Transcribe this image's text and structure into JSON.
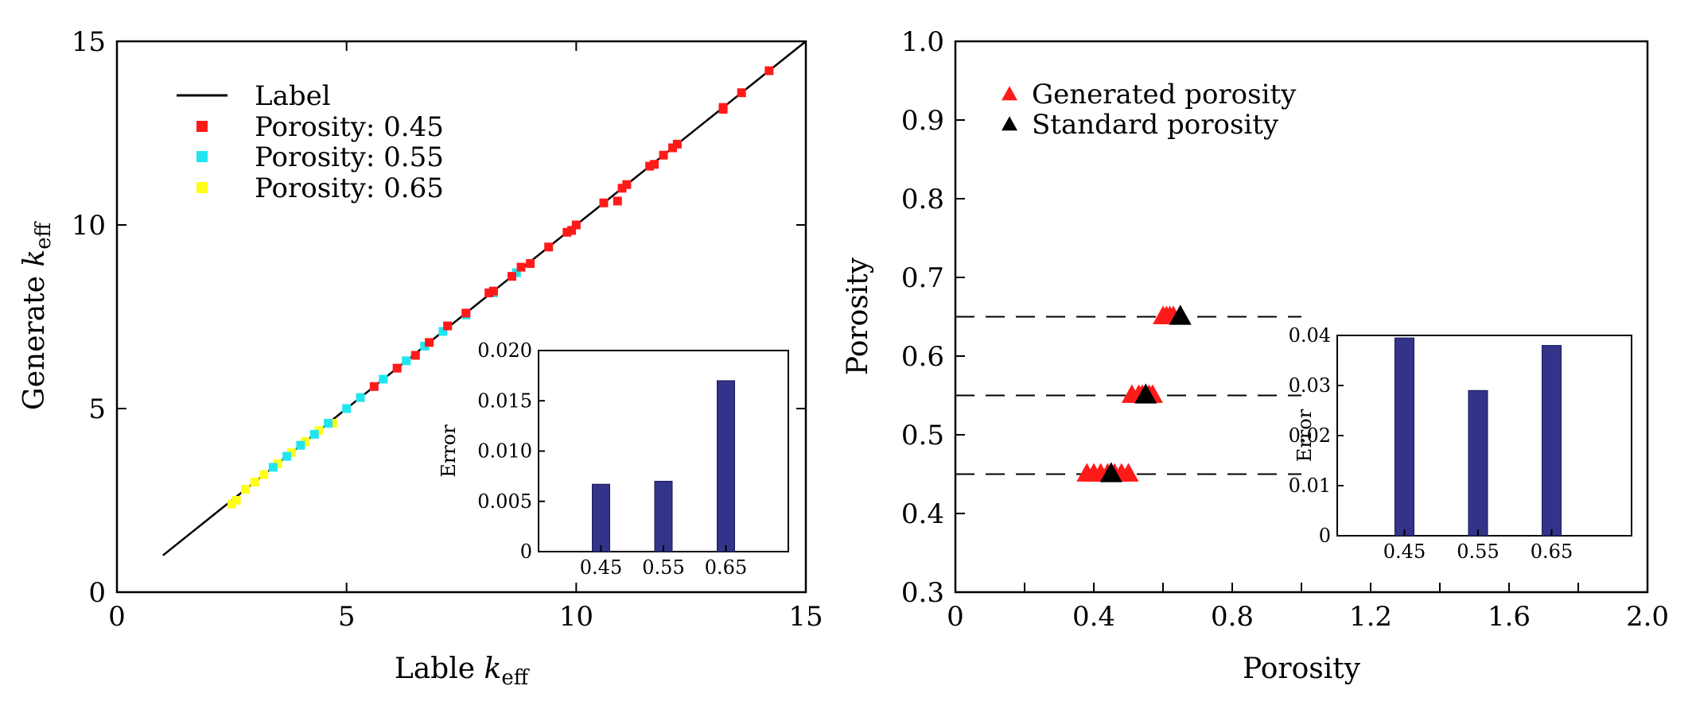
{
  "chart_data": [
    {
      "type": "scatter",
      "panel": "left",
      "title": "",
      "xlabel": "Lable k_eff",
      "ylabel": "Generate k_eff",
      "xlabel_main": "Lable ",
      "xlabel_var": "k",
      "xlabel_sub": "eff",
      "ylabel_main": "Generate ",
      "ylabel_var": "k",
      "ylabel_sub": "eff",
      "xlim": [
        0,
        15
      ],
      "ylim": [
        0,
        15
      ],
      "xticks": [
        0,
        5,
        10,
        15
      ],
      "yticks": [
        0,
        5,
        10,
        15
      ],
      "legend_position": "top-left",
      "reference_line": {
        "name": "Label",
        "x": [
          1,
          15
        ],
        "y": [
          1,
          15
        ],
        "color": "#000000"
      },
      "series": [
        {
          "name": "Porosity: 0.45",
          "color": "#ff1a1a",
          "x": [
            5.6,
            6.1,
            6.5,
            6.8,
            7.2,
            7.6,
            8.1,
            8.2,
            8.6,
            8.8,
            9.0,
            9.4,
            9.8,
            9.9,
            10.0,
            10.6,
            10.9,
            11.0,
            11.1,
            11.6,
            11.7,
            11.9,
            12.1,
            12.2,
            13.2,
            13.2,
            13.6,
            14.2
          ],
          "y": [
            5.6,
            6.1,
            6.45,
            6.8,
            7.25,
            7.6,
            8.15,
            8.2,
            8.6,
            8.85,
            8.95,
            9.4,
            9.8,
            9.85,
            10.0,
            10.6,
            10.65,
            11.0,
            11.1,
            11.6,
            11.65,
            11.9,
            12.1,
            12.2,
            13.15,
            13.2,
            13.6,
            14.2
          ]
        },
        {
          "name": "Porosity: 0.55",
          "color": "#22e5f0",
          "x": [
            3.4,
            3.7,
            4.0,
            4.3,
            4.6,
            5.0,
            5.3,
            5.8,
            6.3,
            6.7,
            7.1,
            7.6,
            8.2,
            8.7
          ],
          "y": [
            3.4,
            3.7,
            4.0,
            4.3,
            4.6,
            5.0,
            5.3,
            5.8,
            6.3,
            6.7,
            7.1,
            7.55,
            8.15,
            8.7
          ]
        },
        {
          "name": "Porosity: 0.65",
          "color": "#ffff1a",
          "x": [
            2.5,
            2.6,
            2.8,
            3.0,
            3.2,
            3.5,
            3.8,
            4.1,
            4.4,
            4.7
          ],
          "y": [
            2.4,
            2.5,
            2.8,
            3.0,
            3.2,
            3.5,
            3.8,
            4.1,
            4.4,
            4.6
          ]
        }
      ],
      "inset": {
        "type": "bar",
        "categories": [
          "0.45",
          "0.55",
          "0.65"
        ],
        "values": [
          0.0067,
          0.007,
          0.017
        ],
        "ylabel": "Error",
        "ylim": [
          0,
          0.02
        ],
        "yticks": [
          0,
          0.005,
          0.01,
          0.015,
          0.02
        ],
        "ytick_labels": [
          "0",
          "0.005",
          "0.010",
          "0.015",
          "0.020"
        ],
        "bar_color": "#33338a"
      }
    },
    {
      "type": "scatter",
      "panel": "right",
      "title": "",
      "xlabel": "Porosity",
      "ylabel": "Porosity",
      "xlim": [
        0,
        2.0
      ],
      "ylim": [
        0.3,
        1.0
      ],
      "xticks": [
        0,
        0.4,
        0.8,
        1.2,
        1.6,
        2.0
      ],
      "xtick_labels": [
        "0",
        "0.4",
        "0.8",
        "1.2",
        "1.6",
        "2.0"
      ],
      "yticks": [
        0.3,
        0.4,
        0.5,
        0.6,
        0.7,
        0.8,
        0.9,
        1.0
      ],
      "ytick_labels": [
        "0.3",
        "0.4",
        "0.5",
        "0.6",
        "0.7",
        "0.8",
        "0.9",
        "1.0"
      ],
      "legend_position": "top-left",
      "dashed_lines": {
        "y": [
          0.45,
          0.55,
          0.65
        ],
        "x_range": [
          0,
          1.0
        ]
      },
      "series": [
        {
          "name": "Generated porosity",
          "color": "#ff1a1a",
          "marker": "triangle",
          "x": [
            0.38,
            0.4,
            0.42,
            0.44,
            0.46,
            0.48,
            0.5,
            0.51,
            0.53,
            0.54,
            0.56,
            0.57,
            0.6,
            0.61,
            0.62,
            0.63
          ],
          "y": [
            0.45,
            0.45,
            0.45,
            0.45,
            0.45,
            0.45,
            0.45,
            0.55,
            0.55,
            0.55,
            0.55,
            0.55,
            0.65,
            0.65,
            0.65,
            0.65
          ]
        },
        {
          "name": "Standard porosity",
          "color": "#000000",
          "marker": "triangle",
          "x": [
            0.45,
            0.55,
            0.65
          ],
          "y": [
            0.45,
            0.55,
            0.65
          ]
        }
      ],
      "inset": {
        "type": "bar",
        "categories": [
          "0.45",
          "0.55",
          "0.65"
        ],
        "values": [
          0.0395,
          0.029,
          0.038
        ],
        "ylabel": "Error",
        "ylim": [
          0,
          0.04
        ],
        "yticks": [
          0,
          0.01,
          0.02,
          0.03,
          0.04
        ],
        "ytick_labels": [
          "0",
          "0.01",
          "0.02",
          "0.03",
          "0.04"
        ],
        "bar_color": "#33338a"
      }
    }
  ]
}
